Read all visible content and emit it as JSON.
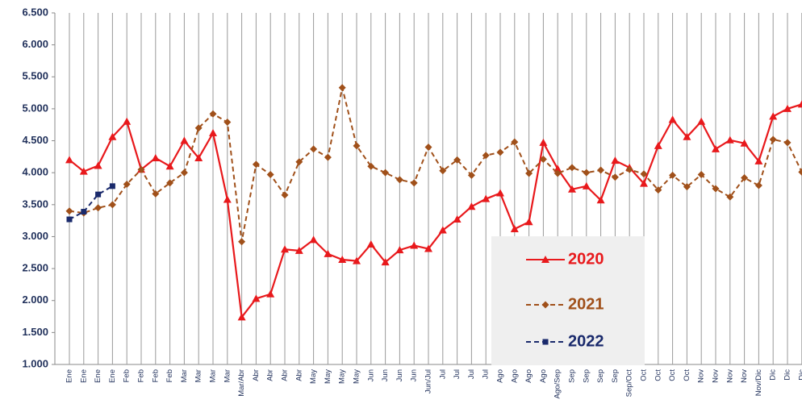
{
  "chart_data": {
    "type": "line",
    "categories": [
      "Ene",
      "Ene",
      "Ene",
      "Ene",
      "Feb",
      "Feb",
      "Feb",
      "Feb",
      "Mar",
      "Mar",
      "Mar",
      "Mar",
      "Mar/Abr",
      "Abr",
      "Abr",
      "Abr",
      "Abr",
      "May",
      "May",
      "May",
      "May",
      "Jun",
      "Jun",
      "Jun",
      "Jun",
      "Jun/Jul",
      "Jul",
      "Jul",
      "Jul",
      "Jul",
      "Ago",
      "Ago",
      "Ago",
      "Ago",
      "Ago/Sep",
      "Sep",
      "Sep",
      "Sep",
      "Sep",
      "Sep/Oct",
      "Oct",
      "Oct",
      "Oct",
      "Oct",
      "Nov",
      "Nov",
      "Nov",
      "Nov",
      "Nov/Dic",
      "Dic",
      "Dic",
      "Dic"
    ],
    "series": [
      {
        "name": "2020",
        "color": "#e8191c",
        "marker": "triangle",
        "dashed": false,
        "values": [
          4200,
          4020,
          4110,
          4560,
          4800,
          4050,
          4230,
          4100,
          4500,
          4230,
          4620,
          3580,
          1740,
          2030,
          2100,
          2800,
          2780,
          2950,
          2730,
          2640,
          2620,
          2880,
          2600,
          2790,
          2860,
          2810,
          3100,
          3270,
          3470,
          3590,
          3680,
          3120,
          3230,
          4470,
          4060,
          3740,
          3790,
          3570,
          4190,
          4080,
          3830,
          4420,
          4830,
          4560,
          4800,
          4370,
          4510,
          4460,
          4180,
          4880,
          5000,
          5070
        ]
      },
      {
        "name": "2021",
        "color": "#a0501a",
        "marker": "diamond",
        "dashed": true,
        "values": [
          3400,
          3370,
          3450,
          3500,
          3820,
          4050,
          3670,
          3840,
          4000,
          4700,
          4920,
          4790,
          2920,
          4130,
          3970,
          3650,
          4170,
          4370,
          4240,
          5330,
          4420,
          4100,
          4000,
          3890,
          3840,
          4400,
          4030,
          4200,
          3960,
          4270,
          4320,
          4480,
          3990,
          4210,
          3990,
          4080,
          4000,
          4040,
          3930,
          4050,
          3980,
          3730,
          3960,
          3780,
          3970,
          3750,
          3620,
          3920,
          3800,
          4520,
          4470,
          4010
        ]
      },
      {
        "name": "2022",
        "color": "#1a2a6c",
        "marker": "square",
        "dashed": true,
        "values": [
          3270,
          3390,
          3660,
          3790,
          null,
          null,
          null,
          null,
          null,
          null,
          null,
          null,
          null,
          null,
          null,
          null,
          null,
          null,
          null,
          null,
          null,
          null,
          null,
          null,
          null,
          null,
          null,
          null,
          null,
          null,
          null,
          null,
          null,
          null,
          null,
          null,
          null,
          null,
          null,
          null,
          null,
          null,
          null,
          null,
          null,
          null,
          null,
          null,
          null,
          null,
          null,
          null
        ]
      }
    ],
    "ylim": [
      1000,
      6500
    ],
    "yticks": [
      {
        "value": 1000,
        "label": "1.000"
      },
      {
        "value": 1500,
        "label": "1.500"
      },
      {
        "value": 2000,
        "label": "2.000"
      },
      {
        "value": 2500,
        "label": "2.500"
      },
      {
        "value": 3000,
        "label": "3.000"
      },
      {
        "value": 3500,
        "label": "3.500"
      },
      {
        "value": 4000,
        "label": "4.000"
      },
      {
        "value": 4500,
        "label": "4.500"
      },
      {
        "value": 5000,
        "label": "5.000"
      },
      {
        "value": 5500,
        "label": "5.500"
      },
      {
        "value": 6000,
        "label": "6.000"
      },
      {
        "value": 6500,
        "label": "6.500"
      }
    ]
  }
}
